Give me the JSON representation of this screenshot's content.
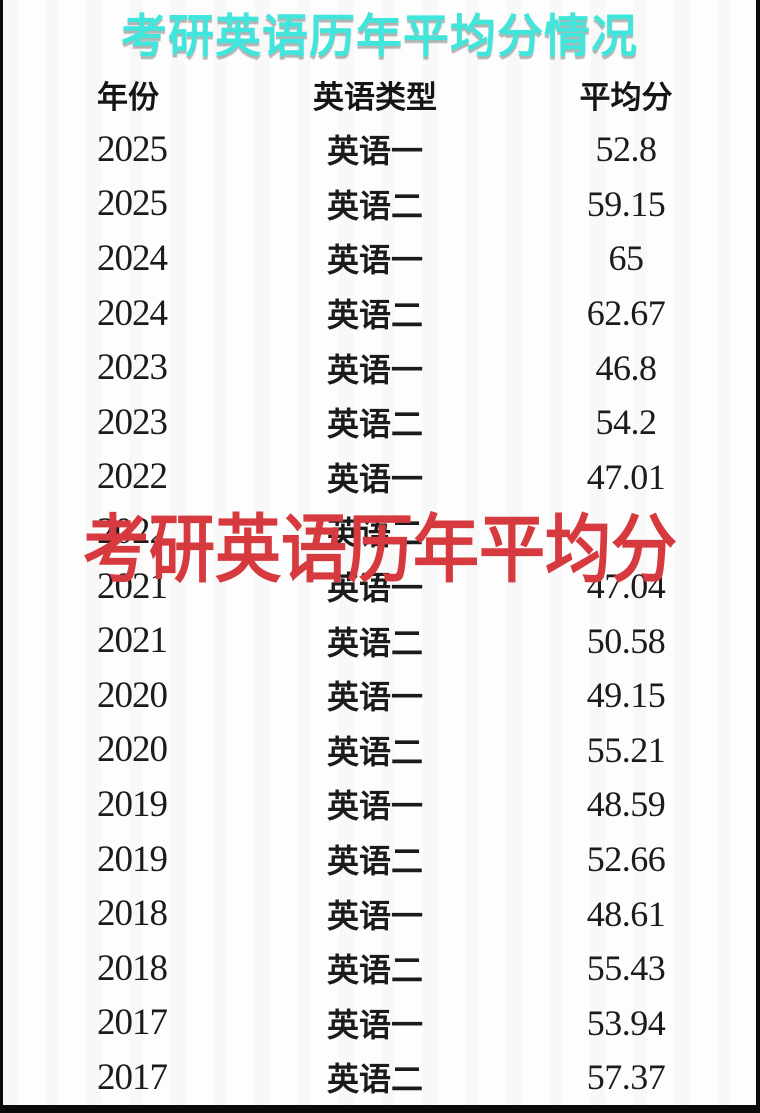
{
  "page": {
    "title": "考研英语历年平均分情况",
    "watermark": "考研英语历年平均分"
  },
  "colors": {
    "title": "#40E6DC",
    "watermark": "#D63A3E",
    "text": "#1B1B1B",
    "border": "#0B0B0B",
    "background": "#FDFDFD"
  },
  "table": {
    "columns": [
      "年份",
      "英语类型",
      "平均分"
    ],
    "rows": [
      {
        "year": "2025",
        "type": "英语一",
        "score": "52.8"
      },
      {
        "year": "2025",
        "type": "英语二",
        "score": "59.15"
      },
      {
        "year": "2024",
        "type": "英语一",
        "score": "65"
      },
      {
        "year": "2024",
        "type": "英语二",
        "score": "62.67"
      },
      {
        "year": "2023",
        "type": "英语一",
        "score": "46.8"
      },
      {
        "year": "2023",
        "type": "英语二",
        "score": "54.2"
      },
      {
        "year": "2022",
        "type": "英语一",
        "score": "47.01"
      },
      {
        "year": "2022",
        "type": "英语二",
        "score": "",
        "obscured": true
      },
      {
        "year": "2021",
        "type": "英语一",
        "score": "47.04"
      },
      {
        "year": "2021",
        "type": "英语二",
        "score": "50.58"
      },
      {
        "year": "2020",
        "type": "英语一",
        "score": "49.15"
      },
      {
        "year": "2020",
        "type": "英语二",
        "score": "55.21"
      },
      {
        "year": "2019",
        "type": "英语一",
        "score": "48.59"
      },
      {
        "year": "2019",
        "type": "英语二",
        "score": "52.66"
      },
      {
        "year": "2018",
        "type": "英语一",
        "score": "48.61"
      },
      {
        "year": "2018",
        "type": "英语二",
        "score": "55.43"
      },
      {
        "year": "2017",
        "type": "英语一",
        "score": "53.94"
      },
      {
        "year": "2017",
        "type": "英语二",
        "score": "57.37"
      }
    ]
  },
  "chart_data": {
    "type": "table",
    "title": "考研英语历年平均分情况",
    "columns": [
      "年份",
      "英语类型",
      "平均分"
    ],
    "rows": [
      [
        "2025",
        "英语一",
        52.8
      ],
      [
        "2025",
        "英语二",
        59.15
      ],
      [
        "2024",
        "英语一",
        65
      ],
      [
        "2024",
        "英语二",
        62.67
      ],
      [
        "2023",
        "英语一",
        46.8
      ],
      [
        "2023",
        "英语二",
        54.2
      ],
      [
        "2022",
        "英语一",
        47.01
      ],
      [
        "2022",
        "英语二",
        null
      ],
      [
        "2021",
        "英语一",
        47.04
      ],
      [
        "2021",
        "英语二",
        50.58
      ],
      [
        "2020",
        "英语一",
        49.15
      ],
      [
        "2020",
        "英语二",
        55.21
      ],
      [
        "2019",
        "英语一",
        48.59
      ],
      [
        "2019",
        "英语二",
        52.66
      ],
      [
        "2018",
        "英语一",
        48.61
      ],
      [
        "2018",
        "英语二",
        55.43
      ],
      [
        "2017",
        "英语一",
        53.94
      ],
      [
        "2017",
        "英语二",
        57.37
      ]
    ],
    "note": "2022 英语二 score is hidden behind the red watermark overlay"
  }
}
